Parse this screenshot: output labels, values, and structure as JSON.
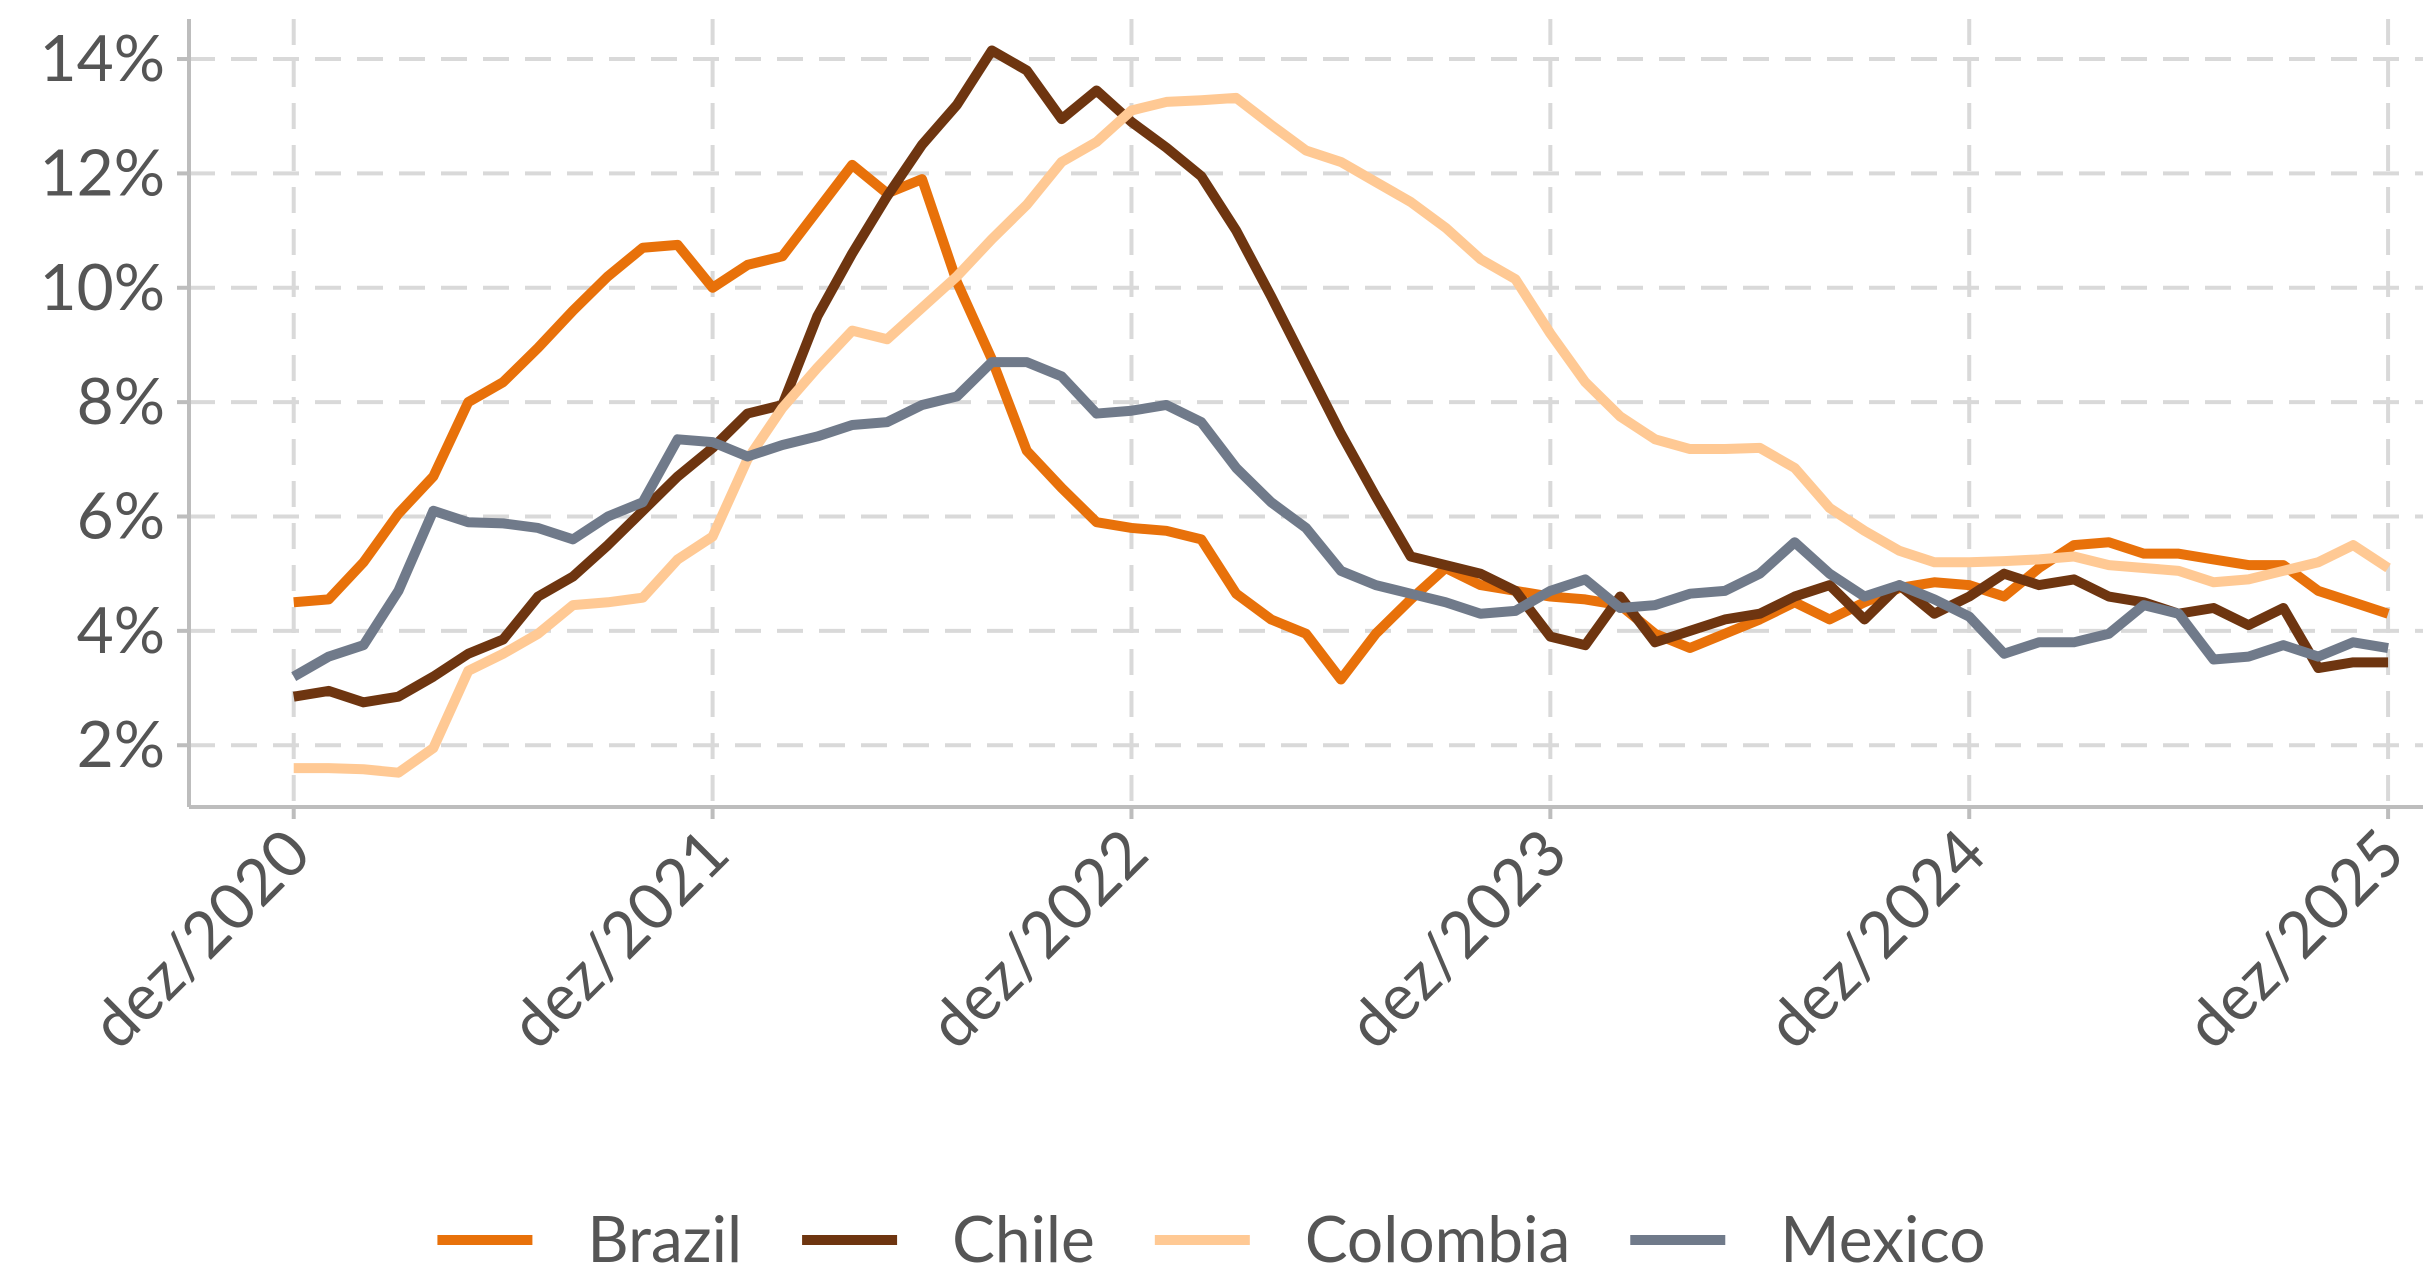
{
  "chart_data": {
    "type": "line",
    "x": [
      "2020-12",
      "2021-01",
      "2021-02",
      "2021-03",
      "2021-04",
      "2021-05",
      "2021-06",
      "2021-07",
      "2021-08",
      "2021-09",
      "2021-10",
      "2021-11",
      "2021-12",
      "2022-01",
      "2022-02",
      "2022-03",
      "2022-04",
      "2022-05",
      "2022-06",
      "2022-07",
      "2022-08",
      "2022-09",
      "2022-10",
      "2022-11",
      "2022-12",
      "2023-01",
      "2023-02",
      "2023-03",
      "2023-04",
      "2023-05",
      "2023-06",
      "2023-07",
      "2023-08",
      "2023-09",
      "2023-10",
      "2023-11",
      "2023-12",
      "2024-01",
      "2024-02",
      "2024-03",
      "2024-04",
      "2024-05",
      "2024-06",
      "2024-07",
      "2024-08",
      "2024-09",
      "2024-10",
      "2024-11",
      "2024-12",
      "2025-01",
      "2025-02",
      "2025-03",
      "2025-04",
      "2025-05",
      "2025-06",
      "2025-07",
      "2025-08",
      "2025-09",
      "2025-10",
      "2025-11",
      "2025-12"
    ],
    "series": [
      {
        "name": "Brazil",
        "color": "#e8710a",
        "values": [
          4.5,
          4.55,
          5.2,
          6.05,
          6.7,
          8.0,
          8.35,
          8.95,
          9.6,
          10.2,
          10.7,
          10.75,
          10.0,
          10.4,
          10.55,
          11.35,
          12.15,
          11.65,
          11.9,
          10.1,
          8.75,
          7.15,
          6.5,
          5.9,
          5.8,
          5.75,
          5.6,
          4.65,
          4.2,
          3.95,
          3.15,
          3.95,
          4.55,
          5.1,
          4.8,
          4.7,
          4.6,
          4.55,
          4.45,
          3.95,
          3.7,
          3.95,
          4.2,
          4.5,
          4.2,
          4.5,
          4.75,
          4.85,
          4.8,
          4.6,
          5.1,
          5.5,
          5.55,
          5.35,
          5.35,
          5.25,
          5.15,
          5.15,
          4.7,
          4.5,
          4.3
        ]
      },
      {
        "name": "Chile",
        "color": "#6e3510",
        "values": [
          2.85,
          2.95,
          2.75,
          2.85,
          3.2,
          3.6,
          3.85,
          4.6,
          4.95,
          5.5,
          6.1,
          6.7,
          7.2,
          7.8,
          7.95,
          9.5,
          10.6,
          11.6,
          12.5,
          13.2,
          14.15,
          13.8,
          12.95,
          13.45,
          12.9,
          12.45,
          11.95,
          11.0,
          9.85,
          8.65,
          7.45,
          6.35,
          5.3,
          5.15,
          5.0,
          4.7,
          3.9,
          3.75,
          4.6,
          3.8,
          4.0,
          4.2,
          4.3,
          4.6,
          4.8,
          4.2,
          4.8,
          4.3,
          4.6,
          5.0,
          4.8,
          4.9,
          4.6,
          4.5,
          4.3,
          4.4,
          4.1,
          4.4,
          3.35,
          3.45,
          3.45
        ]
      },
      {
        "name": "Colombia",
        "color": "#ffc994",
        "values": [
          1.6,
          1.6,
          1.58,
          1.52,
          1.95,
          3.3,
          3.6,
          3.95,
          4.45,
          4.5,
          4.58,
          5.25,
          5.65,
          7.0,
          7.9,
          8.6,
          9.25,
          9.1,
          9.65,
          10.2,
          10.85,
          11.45,
          12.2,
          12.55,
          13.1,
          13.25,
          13.28,
          13.32,
          12.85,
          12.4,
          12.2,
          11.85,
          11.5,
          11.05,
          10.5,
          10.15,
          9.2,
          8.35,
          7.75,
          7.35,
          7.18,
          7.18,
          7.2,
          6.85,
          6.15,
          5.75,
          5.4,
          5.2,
          5.2,
          5.22,
          5.25,
          5.3,
          5.15,
          5.1,
          5.05,
          4.85,
          4.9,
          5.05,
          5.2,
          5.5,
          5.1
        ]
      },
      {
        "name": "Mexico",
        "color": "#707a8a",
        "values": [
          3.2,
          3.55,
          3.75,
          4.7,
          6.1,
          5.9,
          5.88,
          5.8,
          5.6,
          6.0,
          6.25,
          7.35,
          7.3,
          7.05,
          7.25,
          7.4,
          7.6,
          7.65,
          7.95,
          8.1,
          8.7,
          8.7,
          8.45,
          7.8,
          7.85,
          7.95,
          7.65,
          6.85,
          6.25,
          5.8,
          5.05,
          4.8,
          4.65,
          4.5,
          4.3,
          4.35,
          4.7,
          4.9,
          4.4,
          4.45,
          4.65,
          4.7,
          5.0,
          5.55,
          5.0,
          4.6,
          4.8,
          4.55,
          4.25,
          3.6,
          3.8,
          3.8,
          3.95,
          4.45,
          4.3,
          3.5,
          3.55,
          3.75,
          3.55,
          3.8,
          3.7
        ]
      }
    ],
    "xlim": [
      "2020-09",
      "2026-01"
    ],
    "xticks": [
      {
        "value": "2020-12",
        "label": "dez/2020"
      },
      {
        "value": "2021-12",
        "label": "dez/2021"
      },
      {
        "value": "2022-12",
        "label": "dez/2022"
      },
      {
        "value": "2023-12",
        "label": "dez/2023"
      },
      {
        "value": "2024-12",
        "label": "dez/2024"
      },
      {
        "value": "2025-12",
        "label": "dez/2025"
      }
    ],
    "ylim": [
      0.92,
      14.7
    ],
    "yticks": [
      {
        "value": 2,
        "label": "2%"
      },
      {
        "value": 4,
        "label": "4%"
      },
      {
        "value": 6,
        "label": "6%"
      },
      {
        "value": 8,
        "label": "8%"
      },
      {
        "value": 10,
        "label": "10%"
      },
      {
        "value": 12,
        "label": "12%"
      },
      {
        "value": 14,
        "label": "14%"
      }
    ],
    "grid": true,
    "legend": "bottom"
  }
}
